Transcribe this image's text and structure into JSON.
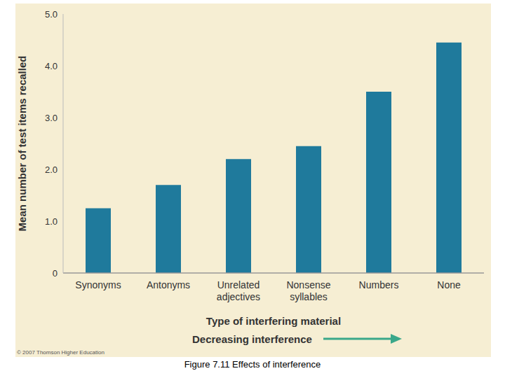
{
  "chart_data": {
    "type": "bar",
    "title": "Figure 7.11  Effects of interference",
    "x_label": "Type of interfering material",
    "y_label": "Mean number of test items recalled",
    "annotation": "Decreasing interference",
    "copyright": "© 2007 Thomson Higher Education",
    "categories": [
      "Synonyms",
      "Antonyms",
      "Unrelated adjectives",
      "Nonsense syllables",
      "Numbers",
      "None"
    ],
    "values": [
      1.25,
      1.7,
      2.2,
      2.45,
      3.5,
      4.45
    ],
    "color": "#1f7a9c",
    "ylim": [
      0,
      5
    ],
    "yticks": [
      0,
      {
        "value": 1,
        "label": "1.0"
      },
      {
        "value": 2,
        "label": "2.0"
      },
      {
        "value": 3,
        "label": "3.0"
      },
      {
        "value": 4,
        "label": "4.0"
      },
      {
        "value": 5,
        "label": "5.0"
      }
    ],
    "grid": false
  }
}
